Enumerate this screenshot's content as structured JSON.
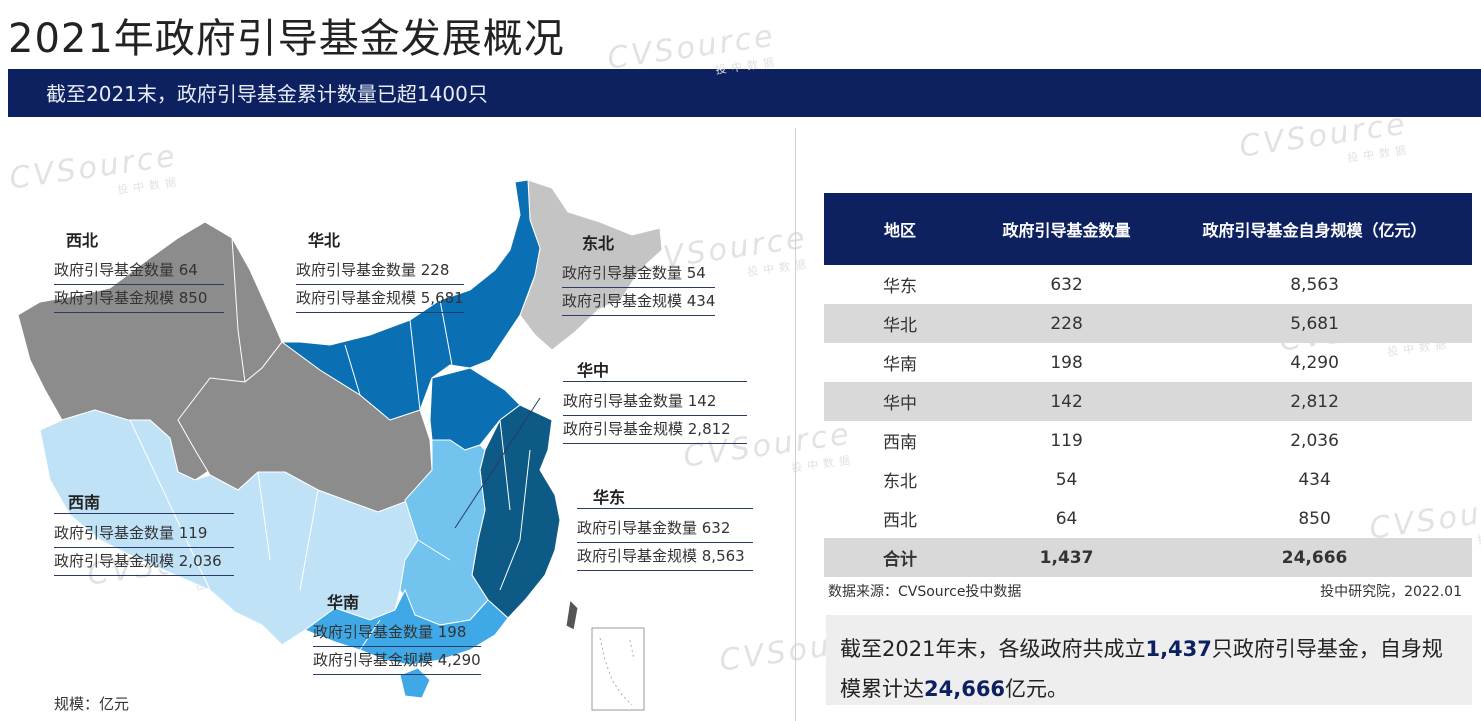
{
  "page": {
    "title": "2021年政府引导基金发展概况",
    "banner": "截至2021末，政府引导基金累计数量已超1400只",
    "unit_note": "规模：亿元",
    "watermark": "CVSource",
    "watermark_sub": "投中数据"
  },
  "map_labels": [
    {
      "id": "xibei",
      "name": "西北",
      "count_label": "政府引导基金数量 64",
      "scale_label": "政府引导基金规模 850"
    },
    {
      "id": "huabei",
      "name": "华北",
      "count_label": "政府引导基金数量 228",
      "scale_label": "政府引导基金规模 5,681"
    },
    {
      "id": "dongbei",
      "name": "东北",
      "count_label": "政府引导基金数量 54",
      "scale_label": "政府引导基金规模 434"
    },
    {
      "id": "huazhong",
      "name": "华中",
      "count_label": "政府引导基金数量 142",
      "scale_label": "政府引导基金规模 2,812"
    },
    {
      "id": "xinan",
      "name": "西南",
      "count_label": "政府引导基金数量 119",
      "scale_label": "政府引导基金规模 2,036"
    },
    {
      "id": "huadong",
      "name": "华东",
      "count_label": "政府引导基金数量 632",
      "scale_label": "政府引导基金规模 8,563"
    },
    {
      "id": "huanan",
      "name": "华南",
      "count_label": "政府引导基金数量 198",
      "scale_label": "政府引导基金规模 4,290"
    }
  ],
  "colors": {
    "navy": "#0d2160",
    "xibei": "#8c8c8c",
    "dongbei": "#c4c4c4",
    "huabei": "#0a70b3",
    "huadong": "#0d5a86",
    "huazhong": "#72c4ef",
    "huanan": "#3fa9e8",
    "xinan": "#bfe2f7"
  },
  "chart_data": {
    "type": "table",
    "columns": [
      "地区",
      "政府引导基金数量",
      "政府引导基金自身规模（亿元）"
    ],
    "rows": [
      {
        "region": "华东",
        "count": "632",
        "scale": "8,563"
      },
      {
        "region": "华北",
        "count": "228",
        "scale": "5,681"
      },
      {
        "region": "华南",
        "count": "198",
        "scale": "4,290"
      },
      {
        "region": "华中",
        "count": "142",
        "scale": "2,812"
      },
      {
        "region": "西南",
        "count": "119",
        "scale": "2,036"
      },
      {
        "region": "东北",
        "count": "54",
        "scale": "434"
      },
      {
        "region": "西北",
        "count": "64",
        "scale": "850"
      }
    ],
    "total": {
      "region": "合计",
      "count": "1,437",
      "scale": "24,666"
    }
  },
  "source": "数据来源：CVSource投中数据",
  "credit": "投中研究院，2022.01",
  "summary": {
    "p1": "截至2021年末，各级政府共成立",
    "count": "1,437",
    "p2": "只政府引导基金，自身规模累计达",
    "scale": "24,666",
    "p3": "亿元。"
  }
}
